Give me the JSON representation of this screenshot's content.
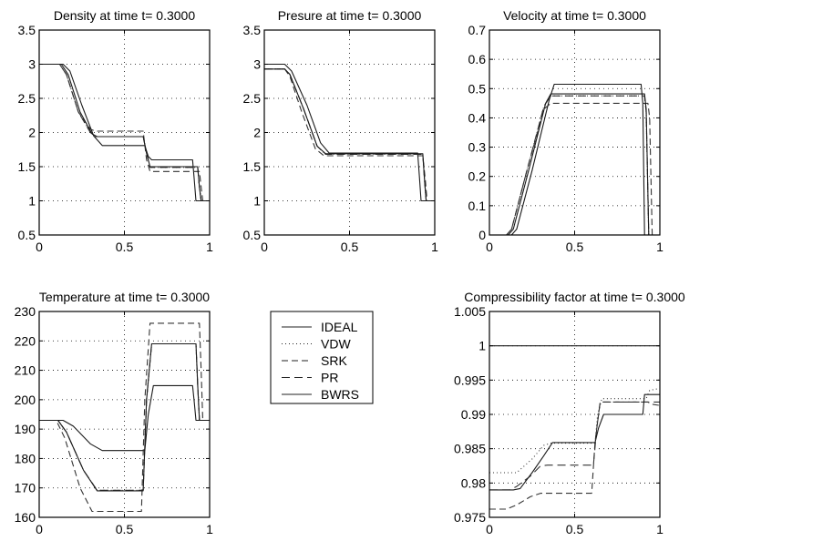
{
  "figure": {
    "legend": {
      "position": "middle-center",
      "entries": [
        {
          "name": "IDEAL",
          "style": "solid"
        },
        {
          "name": "VDW",
          "style": "dotted"
        },
        {
          "name": "SRK",
          "style": "dashed"
        },
        {
          "name": "PR",
          "style": "dashed"
        },
        {
          "name": "BWRS",
          "style": "solid"
        }
      ]
    },
    "line_color": "#000000",
    "grid_color": "#000000"
  },
  "chart_data": [
    {
      "type": "line",
      "title": "Density at time t= 0.3000",
      "xlabel": "",
      "ylabel": "",
      "xlim": [
        0,
        1
      ],
      "ylim": [
        0.5,
        3.5
      ],
      "xticks": [
        0,
        0.5,
        1
      ],
      "xtick_labels": [
        "0",
        "0.5",
        "1"
      ],
      "yticks": [
        0.5,
        1,
        1.5,
        2,
        2.5,
        3,
        3.5
      ],
      "ytick_labels": [
        "0.5",
        "1",
        "1.5",
        "2",
        "2.5",
        "3",
        "3.5"
      ],
      "grid": true,
      "series": [
        {
          "name": "IDEAL",
          "style": "solid",
          "x": [
            0,
            0.14,
            0.18,
            0.25,
            0.32,
            0.37,
            0.62,
            0.64,
            0.66,
            0.9,
            0.91,
            0.92,
            1
          ],
          "y": [
            3,
            3,
            2.9,
            2.4,
            1.95,
            1.81,
            1.81,
            1.65,
            1.6,
            1.6,
            1.3,
            1,
            1
          ]
        },
        {
          "name": "VDW",
          "style": "dotted",
          "x": [
            0,
            0.12,
            0.16,
            0.23,
            0.3,
            0.33,
            0.61,
            0.63,
            0.65,
            0.93,
            0.94,
            0.95,
            1
          ],
          "y": [
            3,
            3,
            2.85,
            2.3,
            2.0,
            1.94,
            1.94,
            1.7,
            1.49,
            1.49,
            1.2,
            1,
            1
          ]
        },
        {
          "name": "SRK",
          "style": "dashed",
          "x": [
            0,
            0.12,
            0.16,
            0.23,
            0.3,
            0.33,
            0.61,
            0.63,
            0.65,
            0.94,
            0.95,
            0.96,
            1
          ],
          "y": [
            3,
            3,
            2.85,
            2.3,
            2.05,
            2.02,
            2.02,
            1.6,
            1.43,
            1.43,
            1.2,
            1,
            1
          ]
        },
        {
          "name": "PR",
          "style": "dashed",
          "x": [
            0,
            0.12,
            0.16,
            0.23,
            0.3,
            0.33,
            0.61,
            0.63,
            0.65,
            0.93,
            0.94,
            0.95,
            1
          ],
          "y": [
            3,
            3,
            2.85,
            2.3,
            2.0,
            1.94,
            1.94,
            1.7,
            1.49,
            1.49,
            1.2,
            1,
            1
          ]
        },
        {
          "name": "BWRS",
          "style": "solid",
          "x": [
            0,
            0.13,
            0.17,
            0.24,
            0.31,
            0.34,
            0.61,
            0.63,
            0.65,
            0.93,
            0.94,
            0.95,
            1
          ],
          "y": [
            3,
            3,
            2.85,
            2.3,
            1.98,
            1.94,
            1.94,
            1.7,
            1.5,
            1.5,
            1.2,
            1,
            1
          ]
        }
      ]
    },
    {
      "type": "line",
      "title": "Presure at time t= 0.3000",
      "xlabel": "",
      "ylabel": "",
      "xlim": [
        0,
        1
      ],
      "ylim": [
        0.5,
        3.5
      ],
      "xticks": [
        0,
        0.5,
        1
      ],
      "xtick_labels": [
        "0",
        "0.5",
        "1"
      ],
      "yticks": [
        0.5,
        1,
        1.5,
        2,
        2.5,
        3,
        3.5
      ],
      "ytick_labels": [
        "0.5",
        "1",
        "1.5",
        "2",
        "2.5",
        "3",
        "3.5"
      ],
      "grid": true,
      "series": [
        {
          "name": "IDEAL",
          "style": "solid",
          "x": [
            0,
            0.12,
            0.16,
            0.25,
            0.33,
            0.38,
            0.9,
            0.91,
            0.92,
            1
          ],
          "y": [
            3,
            3,
            2.9,
            2.4,
            1.85,
            1.7,
            1.7,
            1.35,
            1,
            1
          ]
        },
        {
          "name": "VDW",
          "style": "dotted",
          "x": [
            0,
            0.12,
            0.15,
            0.23,
            0.31,
            0.36,
            0.93,
            0.94,
            0.95,
            1
          ],
          "y": [
            2.93,
            2.93,
            2.85,
            2.35,
            1.8,
            1.68,
            1.68,
            1.3,
            1,
            1
          ]
        },
        {
          "name": "SRK",
          "style": "dashed",
          "x": [
            0,
            0.12,
            0.15,
            0.22,
            0.3,
            0.35,
            0.93,
            0.945,
            0.955,
            1
          ],
          "y": [
            2.93,
            2.93,
            2.82,
            2.3,
            1.76,
            1.66,
            1.66,
            1.3,
            1,
            1
          ]
        },
        {
          "name": "PR",
          "style": "dashed",
          "x": [
            0,
            0.12,
            0.15,
            0.23,
            0.31,
            0.36,
            0.93,
            0.94,
            0.95,
            1
          ],
          "y": [
            2.93,
            2.93,
            2.85,
            2.35,
            1.8,
            1.68,
            1.68,
            1.3,
            1,
            1
          ]
        },
        {
          "name": "BWRS",
          "style": "solid",
          "x": [
            0,
            0.12,
            0.15,
            0.23,
            0.31,
            0.36,
            0.93,
            0.94,
            0.95,
            1
          ],
          "y": [
            2.93,
            2.93,
            2.85,
            2.35,
            1.8,
            1.69,
            1.69,
            1.3,
            1,
            1
          ]
        }
      ]
    },
    {
      "type": "line",
      "title": "Velocity at time t= 0.3000",
      "xlabel": "",
      "ylabel": "",
      "xlim": [
        0,
        1
      ],
      "ylim": [
        0,
        0.7
      ],
      "xticks": [
        0,
        0.5,
        1
      ],
      "xtick_labels": [
        "0",
        "0.5",
        "1"
      ],
      "yticks": [
        0,
        0.1,
        0.2,
        0.3,
        0.4,
        0.5,
        0.6,
        0.7
      ],
      "ytick_labels": [
        "0",
        "0.1",
        "0.2",
        "0.3",
        "0.4",
        "0.5",
        "0.6",
        "0.7"
      ],
      "grid": true,
      "series": [
        {
          "name": "IDEAL",
          "style": "solid",
          "x": [
            0,
            0.13,
            0.16,
            0.25,
            0.35,
            0.38,
            0.89,
            0.9,
            0.91,
            1
          ],
          "y": [
            0,
            0,
            0.02,
            0.22,
            0.46,
            0.515,
            0.515,
            0.45,
            0,
            0
          ]
        },
        {
          "name": "VDW",
          "style": "dotted",
          "x": [
            0,
            0.1,
            0.13,
            0.22,
            0.32,
            0.36,
            0.91,
            0.92,
            0.935,
            1
          ],
          "y": [
            0,
            0,
            0.02,
            0.22,
            0.44,
            0.475,
            0.475,
            0.42,
            0,
            0
          ]
        },
        {
          "name": "SRK",
          "style": "dashed",
          "x": [
            0,
            0.1,
            0.13,
            0.22,
            0.32,
            0.36,
            0.93,
            0.94,
            0.955,
            1
          ],
          "y": [
            0,
            0,
            0.02,
            0.22,
            0.43,
            0.45,
            0.45,
            0.4,
            0,
            0
          ]
        },
        {
          "name": "PR",
          "style": "dashed",
          "x": [
            0,
            0.1,
            0.13,
            0.22,
            0.32,
            0.36,
            0.91,
            0.92,
            0.935,
            1
          ],
          "y": [
            0,
            0,
            0.02,
            0.22,
            0.44,
            0.475,
            0.475,
            0.42,
            0,
            0
          ]
        },
        {
          "name": "BWRS",
          "style": "solid",
          "x": [
            0,
            0.11,
            0.14,
            0.23,
            0.33,
            0.36,
            0.91,
            0.92,
            0.935,
            1
          ],
          "y": [
            0,
            0,
            0.02,
            0.22,
            0.45,
            0.482,
            0.482,
            0.43,
            0,
            0
          ]
        }
      ]
    },
    {
      "type": "line",
      "title": "Temperature at time t= 0.3000",
      "xlabel": "",
      "ylabel": "",
      "xlim": [
        0,
        1
      ],
      "ylim": [
        160,
        230
      ],
      "xticks": [
        0,
        0.5,
        1
      ],
      "xtick_labels": [
        "0",
        "0.5",
        "1"
      ],
      "yticks": [
        160,
        170,
        180,
        190,
        200,
        210,
        220,
        230
      ],
      "ytick_labels": [
        "160",
        "170",
        "180",
        "190",
        "200",
        "210",
        "220",
        "230"
      ],
      "grid": true,
      "series": [
        {
          "name": "IDEAL",
          "style": "solid",
          "x": [
            0,
            0.14,
            0.2,
            0.3,
            0.37,
            0.62,
            0.64,
            0.67,
            0.9,
            0.91,
            0.92,
            1
          ],
          "y": [
            193,
            193,
            191,
            185,
            182.7,
            182.7,
            195,
            204.8,
            204.8,
            199,
            193,
            193
          ]
        },
        {
          "name": "VDW",
          "style": "dotted",
          "x": [
            0,
            0.11,
            0.16,
            0.26,
            0.34,
            0.61,
            0.63,
            0.66,
            0.92,
            0.93,
            0.94,
            1
          ],
          "y": [
            193,
            193,
            189,
            176,
            169.2,
            169.2,
            200,
            219,
            219,
            205,
            193,
            193
          ]
        },
        {
          "name": "SRK",
          "style": "dashed",
          "x": [
            0,
            0.1,
            0.15,
            0.24,
            0.31,
            0.6,
            0.62,
            0.65,
            0.94,
            0.95,
            0.96,
            1
          ],
          "y": [
            193,
            193,
            187,
            170,
            162,
            162,
            200,
            226,
            226,
            210,
            193,
            193
          ]
        },
        {
          "name": "PR",
          "style": "dashed",
          "x": [
            0,
            0.11,
            0.16,
            0.26,
            0.34,
            0.61,
            0.63,
            0.66,
            0.92,
            0.93,
            0.94,
            1
          ],
          "y": [
            193,
            193,
            189,
            176,
            169.2,
            169.2,
            200,
            219,
            219,
            205,
            193,
            193
          ]
        },
        {
          "name": "BWRS",
          "style": "solid",
          "x": [
            0,
            0.11,
            0.16,
            0.26,
            0.34,
            0.61,
            0.63,
            0.66,
            0.92,
            0.93,
            0.94,
            1
          ],
          "y": [
            193,
            193,
            189,
            176,
            169,
            169,
            200,
            219,
            219,
            205,
            193,
            193
          ]
        }
      ]
    },
    {
      "type": "line",
      "title": "Compressibility factor at time t= 0.3000",
      "xlabel": "",
      "ylabel": "",
      "xlim": [
        0,
        1
      ],
      "ylim": [
        0.975,
        1.005
      ],
      "xticks": [
        0,
        0.5,
        1
      ],
      "xtick_labels": [
        "0",
        "0.5",
        "1"
      ],
      "yticks": [
        0.975,
        0.98,
        0.985,
        0.99,
        0.995,
        1,
        1.005
      ],
      "ytick_labels": [
        "0.975",
        "0.98",
        "0.985",
        "0.99",
        "0.995",
        "1",
        "1.005"
      ],
      "grid": true,
      "series": [
        {
          "name": "IDEAL",
          "style": "solid",
          "x": [
            0,
            1
          ],
          "y": [
            1,
            1
          ]
        },
        {
          "name": "VDW",
          "style": "dotted",
          "x": [
            0,
            0.12,
            0.16,
            0.25,
            0.32,
            0.36,
            0.62,
            0.635,
            0.66,
            0.92,
            0.94,
            1
          ],
          "y": [
            0.9815,
            0.9815,
            0.9815,
            0.9835,
            0.9855,
            0.9858,
            0.9858,
            0.99,
            0.9923,
            0.9923,
            0.9935,
            0.9938
          ]
        },
        {
          "name": "SRK",
          "style": "dashed",
          "x": [
            0,
            0.1,
            0.16,
            0.24,
            0.3,
            0.34,
            0.6,
            0.62,
            0.65,
            0.93,
            0.95,
            1
          ],
          "y": [
            0.9762,
            0.9762,
            0.9768,
            0.978,
            0.9785,
            0.9785,
            0.9785,
            0.986,
            0.9918,
            0.9918,
            0.9915,
            0.9913
          ]
        },
        {
          "name": "PR",
          "style": "dashed",
          "x": [
            0,
            0.12,
            0.16,
            0.24,
            0.3,
            0.34,
            0.61,
            0.63,
            0.65,
            0.91,
            0.93,
            1
          ],
          "y": [
            0.979,
            0.979,
            0.9795,
            0.981,
            0.9825,
            0.9826,
            0.9826,
            0.988,
            0.9918,
            0.9918,
            0.9918,
            0.9918
          ]
        },
        {
          "name": "BWRS",
          "style": "solid",
          "x": [
            0,
            0.14,
            0.18,
            0.25,
            0.32,
            0.37,
            0.62,
            0.64,
            0.67,
            0.9,
            0.91,
            1
          ],
          "y": [
            0.979,
            0.979,
            0.9792,
            0.9815,
            0.984,
            0.9859,
            0.9859,
            0.988,
            0.99,
            0.99,
            0.9929,
            0.9929
          ]
        }
      ]
    }
  ]
}
